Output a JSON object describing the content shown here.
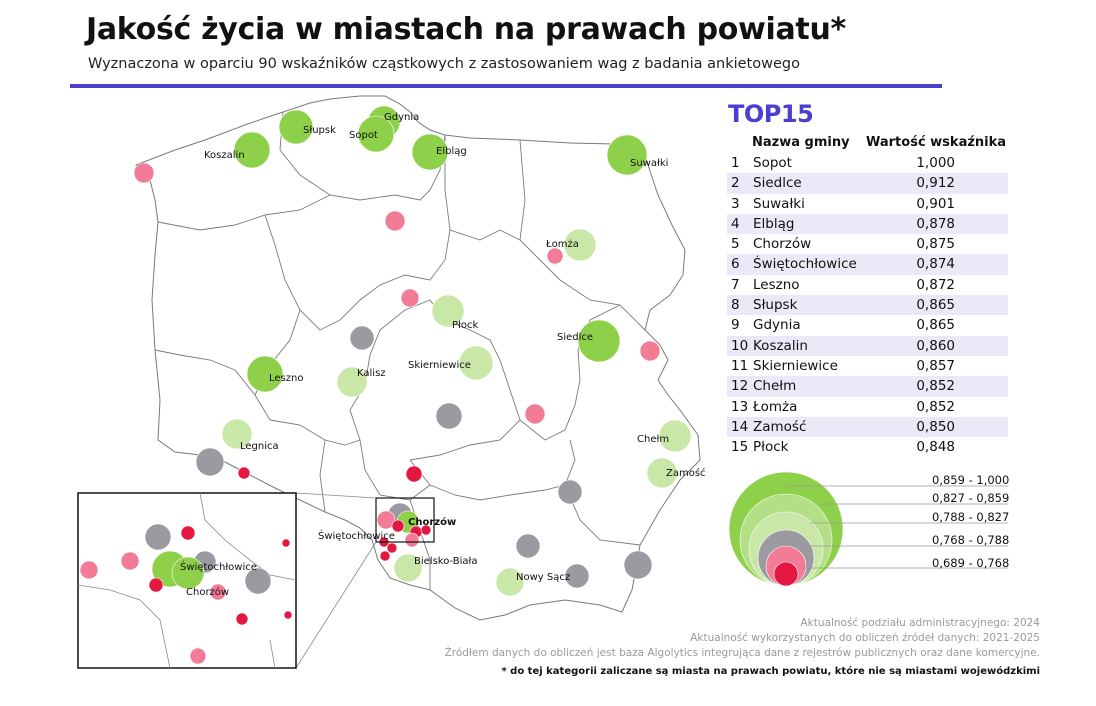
{
  "title": "Jakość życia w miastach na prawach powiatu*",
  "subtitle": "Wyznaczona w oparciu 90 wskaźników cząstkowych z zastosowaniem wag z badania ankietowego",
  "colors": {
    "accent": "#4b3fd0",
    "class_1": "#8fd04a",
    "class_2": "#b3df87",
    "class_3": "#c9e8a8",
    "class_4": "#9a9aa0",
    "class_5": "#f27b95",
    "class_6": "#e3173f"
  },
  "map_labels": {
    "koszalin": "Koszalin",
    "slupsk": "Słupsk",
    "gdynia": "Gdynia",
    "sopot": "Sopot",
    "elblag": "Elbląg",
    "suwalki": "Suwałki",
    "lomza": "Łomża",
    "plock": "Płock",
    "siedlce": "Siedlce",
    "skierniewice": "Skierniewice",
    "kalisz": "Kalisz",
    "leszno": "Leszno",
    "legnica": "Legnica",
    "chelm": "Chełm",
    "zamosc": "Zamość",
    "chorzow": "Chorzów",
    "swietochlowice": "Świętochłowice",
    "bielsko": "Bielsko-Biała",
    "nowy_sacz": "Nowy Sącz"
  },
  "inset": {
    "swietochlowice": "Świętochłowice",
    "chorzow": "Chorzów"
  },
  "top15": {
    "title": "TOP15",
    "col_name": "Nazwa gminy",
    "col_value": "Wartość wskaźnika",
    "rows": [
      {
        "rank": "1",
        "name": "Sopot",
        "value": "1,000"
      },
      {
        "rank": "2",
        "name": "Siedlce",
        "value": "0,912"
      },
      {
        "rank": "3",
        "name": "Suwałki",
        "value": "0,901"
      },
      {
        "rank": "4",
        "name": "Elbląg",
        "value": "0,878"
      },
      {
        "rank": "5",
        "name": "Chorzów",
        "value": "0,875"
      },
      {
        "rank": "6",
        "name": "Świętochłowice",
        "value": "0,874"
      },
      {
        "rank": "7",
        "name": "Leszno",
        "value": "0,872"
      },
      {
        "rank": "8",
        "name": "Słupsk",
        "value": "0,865"
      },
      {
        "rank": "9",
        "name": "Gdynia",
        "value": "0,865"
      },
      {
        "rank": "10",
        "name": "Koszalin",
        "value": "0,860"
      },
      {
        "rank": "11",
        "name": "Skierniewice",
        "value": "0,857"
      },
      {
        "rank": "12",
        "name": "Chełm",
        "value": "0,852"
      },
      {
        "rank": "13",
        "name": "Łomża",
        "value": "0,852"
      },
      {
        "rank": "14",
        "name": "Zamość",
        "value": "0,850"
      },
      {
        "rank": "15",
        "name": "Płock",
        "value": "0,848"
      }
    ]
  },
  "legend": {
    "ranges": [
      "0,859 - 1,000",
      "0,827 - 0,859",
      "0,788 - 0,827",
      "0,768 - 0,788",
      "0,689 - 0,768"
    ]
  },
  "notes": {
    "line1": "Aktualność podziału administracyjnego: 2024",
    "line2": "Aktualność wykorzystanych do obliczeń źródeł danych: 2021-2025",
    "line3": "Źródłem danych do obliczeń jest baza Algolytics integrująca dane z rejestrów publicznych oraz dane komercyjne.",
    "footnote": "* do tej kategorii zaliczane są miasta na prawach powiatu, które nie są miastami wojewódzkimi"
  }
}
